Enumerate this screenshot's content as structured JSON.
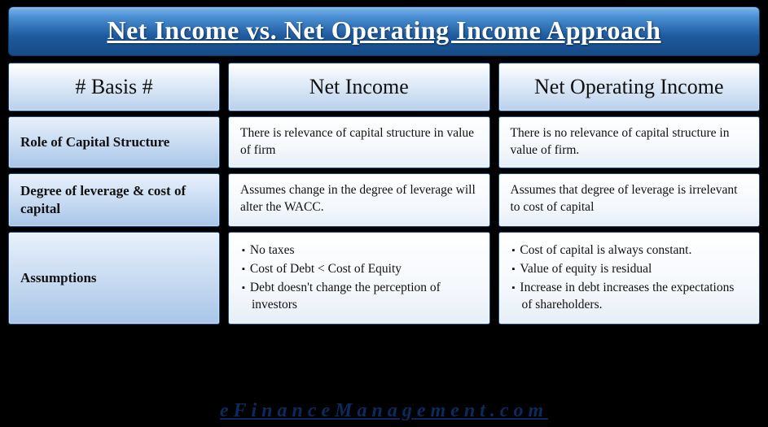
{
  "title": "Net Income vs. Net Operating Income Approach",
  "headers": {
    "basis": "# Basis #",
    "col1": "Net Income",
    "col2": "Net Operating Income"
  },
  "rows": [
    {
      "basis": "Role of Capital Structure",
      "col1": "There is relevance of capital structure in value of firm",
      "col2": "There is no relevance of capital structure in value of firm."
    },
    {
      "basis": "Degree of leverage & cost of capital",
      "col1": "Assumes change in the degree of leverage will alter the WACC.",
      "col2": "Assumes that degree of leverage is irrelevant to cost of capital"
    },
    {
      "basis": "Assumptions",
      "col1_list": [
        "No taxes",
        "Cost of Debt < Cost of Equity",
        "Debt doesn't change the perception of investors"
      ],
      "col2_list": [
        "Cost of capital is always constant.",
        "Value of equity is residual",
        "Increase in debt increases the expectations of shareholders."
      ]
    }
  ],
  "footer": "eFinanceManagement.com",
  "colors": {
    "page_bg": "#000000",
    "title_gradient_top": "#7eb5ea",
    "title_gradient_bottom": "#164a85",
    "title_text": "#ffffff",
    "cell_border": "#1a4d7a",
    "header_bg_top": "#ffffff",
    "header_bg_bottom": "#b9d0ec",
    "basis_bg_top": "#e8f0fa",
    "basis_bg_bottom": "#a8c5e8",
    "body_bg_top": "#ffffff",
    "body_bg_bottom": "#e6eef8",
    "footer_text": "#0d2a5e"
  },
  "typography": {
    "title_fontsize": 32,
    "header_fontsize": 26,
    "basis_fontsize": 17,
    "body_fontsize": 15.5,
    "footer_fontsize": 24,
    "font_family": "Georgia, serif"
  }
}
